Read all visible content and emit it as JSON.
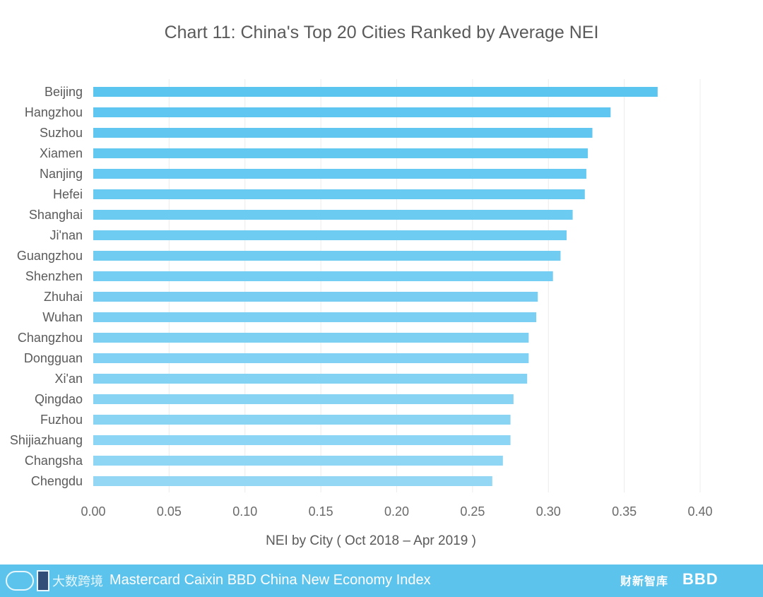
{
  "chart_data": {
    "type": "bar",
    "orientation": "horizontal",
    "title": "Chart 11:  China's Top 20 Cities Ranked by Average NEI",
    "xlabel": "NEI by City ( Oct 2018 – Apr 2019 )",
    "ylabel": "",
    "xlim": [
      0,
      0.4
    ],
    "xticks": [
      "0.00",
      "0.05",
      "0.10",
      "0.15",
      "0.20",
      "0.25",
      "0.30",
      "0.35",
      "0.40"
    ],
    "grid": "vertical",
    "categories": [
      "Beijing",
      "Hangzhou",
      "Suzhou",
      "Xiamen",
      "Nanjing",
      "Hefei",
      "Shanghai",
      "Ji'nan",
      "Guangzhou",
      "Shenzhen",
      "Zhuhai",
      "Wuhan",
      "Changzhou",
      "Dongguan",
      "Xi'an",
      "Qingdao",
      "Fuzhou",
      "Shijiazhuang",
      "Changsha",
      "Chengdu"
    ],
    "values": [
      0.372,
      0.341,
      0.329,
      0.326,
      0.325,
      0.324,
      0.316,
      0.312,
      0.308,
      0.303,
      0.293,
      0.292,
      0.287,
      0.287,
      0.286,
      0.277,
      0.275,
      0.275,
      0.27,
      0.263
    ],
    "bar_colors": [
      "#5bc5f0",
      "#5ec6f0",
      "#61c7f0",
      "#63c8f0",
      "#66c9f1",
      "#68caf1",
      "#6bcbf1",
      "#6ecbf1",
      "#71ccf1",
      "#74cdf2",
      "#77cef2",
      "#7acff2",
      "#7dd0f2",
      "#80d1f3",
      "#83d2f3",
      "#86d3f3",
      "#89d4f3",
      "#8cd5f4",
      "#8fd6f4",
      "#93d7f4"
    ]
  },
  "footer": {
    "text": "Mastercard Caixin BBD China New Economy Index",
    "watermark_text": "大数跨境",
    "caixin_logo_text": "财新智库",
    "bbd_logo_text": "BBD",
    "background_color": "#5cc3ec"
  }
}
